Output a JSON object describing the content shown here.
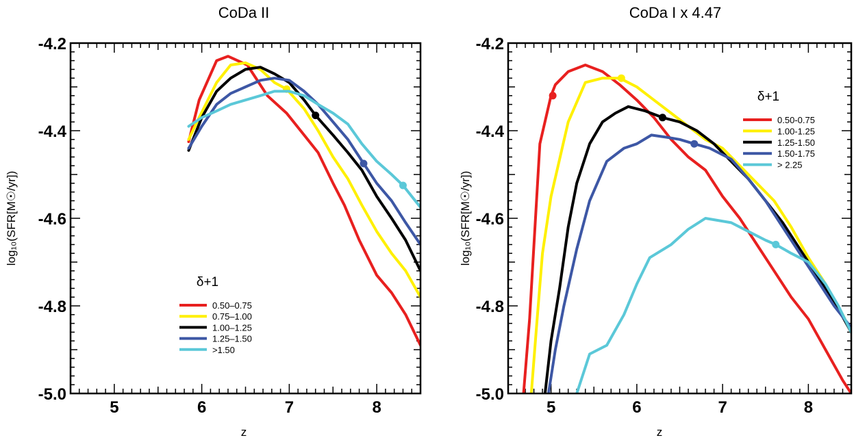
{
  "chart_data": [
    {
      "type": "line",
      "title": "CoDa II",
      "xlabel": "z",
      "ylabel": "log₁₀(SFR[M☉/yr])",
      "xlim": [
        4.5,
        8.5
      ],
      "ylim": [
        -5.0,
        -4.2
      ],
      "x_ticks": [
        5,
        6,
        7,
        8
      ],
      "y_ticks": [
        -4.2,
        -4.4,
        -4.6,
        -4.8,
        -5.0
      ],
      "x_tick_labels": [
        "5",
        "6",
        "7",
        "8"
      ],
      "y_tick_labels": [
        "-4.2",
        "-4.4",
        "-4.6",
        "-4.8",
        "-5.0"
      ],
      "legend": {
        "title": "δ+1",
        "position": "bottom-left"
      },
      "series": [
        {
          "name": "0.50–0.75",
          "color": "#e8201f",
          "x": [
            5.85,
            5.97,
            6.17,
            6.3,
            6.52,
            6.75,
            6.97,
            7.17,
            7.33,
            7.5,
            7.63,
            7.8,
            8.0,
            8.17,
            8.33,
            8.5
          ],
          "y": [
            -4.425,
            -4.33,
            -4.24,
            -4.23,
            -4.25,
            -4.32,
            -4.36,
            -4.41,
            -4.45,
            -4.52,
            -4.57,
            -4.65,
            -4.73,
            -4.77,
            -4.82,
            -4.89
          ],
          "marker": null
        },
        {
          "name": "0.75–1.00",
          "color": "#fff000",
          "x": [
            5.85,
            5.97,
            6.17,
            6.33,
            6.5,
            6.67,
            6.83,
            6.97,
            7.17,
            7.33,
            7.5,
            7.67,
            7.83,
            8.0,
            8.17,
            8.33,
            8.5
          ],
          "y": [
            -4.42,
            -4.37,
            -4.29,
            -4.25,
            -4.245,
            -4.26,
            -4.29,
            -4.305,
            -4.35,
            -4.4,
            -4.46,
            -4.51,
            -4.57,
            -4.63,
            -4.68,
            -4.72,
            -4.78
          ],
          "marker": [
            6.97,
            -4.305
          ]
        },
        {
          "name": "1.00–1.25",
          "color": "#000000",
          "x": [
            5.85,
            6.0,
            6.17,
            6.33,
            6.5,
            6.67,
            6.83,
            7.0,
            7.17,
            7.3,
            7.5,
            7.67,
            7.83,
            8.0,
            8.17,
            8.33,
            8.5
          ],
          "y": [
            -4.445,
            -4.37,
            -4.31,
            -4.28,
            -4.26,
            -4.255,
            -4.27,
            -4.29,
            -4.33,
            -4.365,
            -4.41,
            -4.45,
            -4.49,
            -4.55,
            -4.6,
            -4.65,
            -4.72
          ],
          "marker": [
            7.3,
            -4.365
          ]
        },
        {
          "name": "1.25–1.50",
          "color": "#3d57a5",
          "x": [
            5.85,
            6.0,
            6.17,
            6.33,
            6.5,
            6.67,
            6.83,
            7.0,
            7.17,
            7.33,
            7.5,
            7.67,
            7.85,
            8.0,
            8.17,
            8.33,
            8.5
          ],
          "y": [
            -4.44,
            -4.39,
            -4.34,
            -4.315,
            -4.3,
            -4.285,
            -4.28,
            -4.285,
            -4.31,
            -4.34,
            -4.38,
            -4.42,
            -4.475,
            -4.52,
            -4.56,
            -4.61,
            -4.66
          ],
          "marker": [
            7.85,
            -4.475
          ]
        },
        {
          "name": ">1.50",
          "color": "#5bc8d8",
          "x": [
            5.85,
            6.0,
            6.17,
            6.33,
            6.5,
            6.67,
            6.83,
            7.0,
            7.17,
            7.33,
            7.5,
            7.67,
            7.83,
            8.0,
            8.17,
            8.3,
            8.5
          ],
          "y": [
            -4.39,
            -4.37,
            -4.355,
            -4.34,
            -4.33,
            -4.32,
            -4.31,
            -4.31,
            -4.32,
            -4.34,
            -4.36,
            -4.385,
            -4.43,
            -4.47,
            -4.5,
            -4.525,
            -4.575
          ],
          "marker": [
            8.3,
            -4.525
          ]
        }
      ]
    },
    {
      "type": "line",
      "title": "CoDa I x 4.47",
      "xlabel": "z",
      "ylabel": "log₁₀(SFR[M☉/yr])",
      "xlim": [
        4.5,
        8.5
      ],
      "ylim": [
        -5.0,
        -4.2
      ],
      "x_ticks": [
        5,
        6,
        7,
        8
      ],
      "y_ticks": [
        -4.2,
        -4.4,
        -4.6,
        -4.8,
        -5.0
      ],
      "x_tick_labels": [
        "5",
        "6",
        "7",
        "8"
      ],
      "y_tick_labels": [
        "-4.2",
        "-4.4",
        "-4.6",
        "-4.8",
        "-5.0"
      ],
      "legend": {
        "title": "δ+1",
        "position": "top-right"
      },
      "series": [
        {
          "name": "0.50-0.75",
          "color": "#e8201f",
          "x": [
            4.68,
            4.75,
            4.87,
            5.0,
            5.05,
            5.2,
            5.4,
            5.6,
            5.8,
            6.0,
            6.2,
            6.4,
            6.6,
            6.8,
            7.0,
            7.2,
            7.4,
            7.6,
            7.8,
            8.0,
            8.2,
            8.4,
            8.5
          ],
          "y": [
            -5.0,
            -4.83,
            -4.43,
            -4.32,
            -4.295,
            -4.265,
            -4.25,
            -4.265,
            -4.295,
            -4.33,
            -4.37,
            -4.42,
            -4.46,
            -4.49,
            -4.55,
            -4.6,
            -4.66,
            -4.72,
            -4.78,
            -4.83,
            -4.9,
            -4.97,
            -5.0
          ],
          "marker": [
            5.02,
            -4.32
          ]
        },
        {
          "name": "1.00-1.25",
          "color": "#fff000",
          "x": [
            4.77,
            4.83,
            4.9,
            5.0,
            5.2,
            5.4,
            5.6,
            5.8,
            6.0,
            6.2,
            6.4,
            6.6,
            6.8,
            7.0,
            7.2,
            7.4,
            7.6,
            7.8,
            8.0,
            8.2,
            8.4,
            8.5
          ],
          "y": [
            -5.0,
            -4.85,
            -4.68,
            -4.55,
            -4.38,
            -4.29,
            -4.28,
            -4.28,
            -4.3,
            -4.33,
            -4.36,
            -4.39,
            -4.42,
            -4.44,
            -4.48,
            -4.52,
            -4.56,
            -4.62,
            -4.69,
            -4.75,
            -4.82,
            -4.86
          ],
          "marker": [
            5.82,
            -4.28
          ]
        },
        {
          "name": "1.25-1.50",
          "color": "#000000",
          "x": [
            4.93,
            5.0,
            5.1,
            5.2,
            5.3,
            5.45,
            5.6,
            5.75,
            5.9,
            6.1,
            6.3,
            6.5,
            6.7,
            6.9,
            7.1,
            7.3,
            7.5,
            7.7,
            7.9,
            8.1,
            8.3,
            8.5
          ],
          "y": [
            -5.0,
            -4.88,
            -4.76,
            -4.62,
            -4.52,
            -4.43,
            -4.38,
            -4.36,
            -4.345,
            -4.355,
            -4.37,
            -4.38,
            -4.4,
            -4.43,
            -4.47,
            -4.51,
            -4.56,
            -4.61,
            -4.67,
            -4.73,
            -4.79,
            -4.86
          ],
          "marker": [
            6.3,
            -4.37
          ]
        },
        {
          "name": "1.50-1.75",
          "color": "#3d57a5",
          "x": [
            4.97,
            5.05,
            5.15,
            5.3,
            5.45,
            5.65,
            5.85,
            6.0,
            6.17,
            6.35,
            6.5,
            6.67,
            6.85,
            7.1,
            7.3,
            7.5,
            7.7,
            7.9,
            8.1,
            8.3,
            8.5
          ],
          "y": [
            -5.0,
            -4.9,
            -4.8,
            -4.67,
            -4.56,
            -4.47,
            -4.44,
            -4.43,
            -4.41,
            -4.415,
            -4.42,
            -4.43,
            -4.44,
            -4.465,
            -4.51,
            -4.56,
            -4.62,
            -4.68,
            -4.74,
            -4.8,
            -4.85
          ],
          "marker": [
            6.67,
            -4.43
          ]
        },
        {
          "name": "> 2.25",
          "color": "#5bc8d8",
          "x": [
            5.3,
            5.45,
            5.65,
            5.85,
            6.0,
            6.15,
            6.4,
            6.6,
            6.8,
            7.1,
            7.3,
            7.5,
            7.62,
            7.8,
            8.0,
            8.2,
            8.35,
            8.5
          ],
          "y": [
            -5.0,
            -4.91,
            -4.89,
            -4.82,
            -4.75,
            -4.69,
            -4.66,
            -4.625,
            -4.6,
            -4.61,
            -4.63,
            -4.65,
            -4.66,
            -4.68,
            -4.7,
            -4.75,
            -4.8,
            -4.86
          ],
          "marker": [
            7.62,
            -4.66
          ]
        }
      ]
    }
  ]
}
